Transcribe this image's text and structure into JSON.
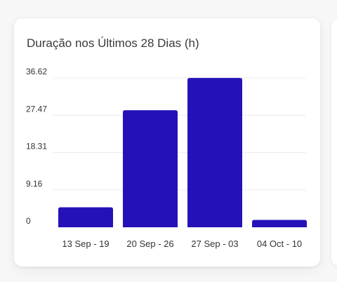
{
  "chart_data": {
    "type": "bar",
    "title": "Duração nos Últimos 28 Dias (h)",
    "categories": [
      "13 Sep - 19",
      "20 Sep - 26",
      "27 Sep - 03",
      "04 Oct - 10"
    ],
    "values": [
      4.9,
      28.7,
      36.6,
      1.8
    ],
    "yticks": [
      "0",
      "9.16",
      "18.31",
      "27.47",
      "36.62"
    ],
    "ytick_values": [
      0,
      9.155,
      18.31,
      27.465,
      36.62
    ],
    "ylim": [
      0,
      36.62
    ],
    "grid": true,
    "bar_color": "#2412b8"
  }
}
